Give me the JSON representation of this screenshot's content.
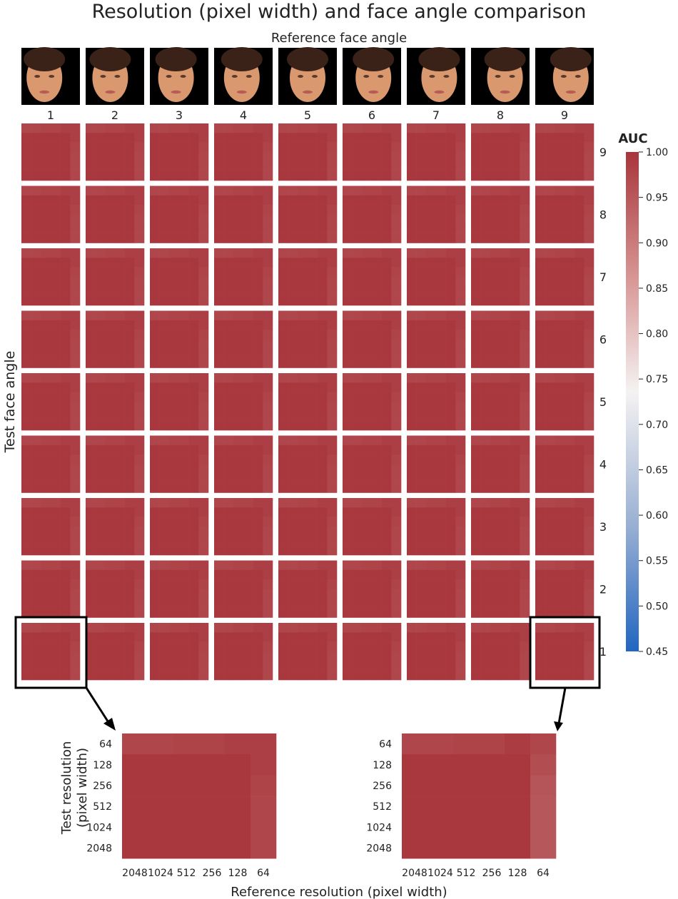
{
  "chart_data": {
    "type": "heatmap",
    "title": "Resolution (pixel width) and face angle comparison",
    "top_label": "Reference face angle",
    "ylabel": "Test face angle",
    "reference_angles": [
      "1",
      "2",
      "3",
      "4",
      "5",
      "6",
      "7",
      "8",
      "9"
    ],
    "test_angles": [
      "9",
      "8",
      "7",
      "6",
      "5",
      "4",
      "3",
      "2",
      "1"
    ],
    "colorbar": {
      "label": "AUC",
      "range": [
        0.45,
        1.0
      ],
      "ticks": [
        "1.00",
        "0.95",
        "0.90",
        "0.85",
        "0.80",
        "0.75",
        "0.70",
        "0.65",
        "0.60",
        "0.55",
        "0.50",
        "0.45"
      ]
    },
    "zoom": {
      "xlabel": "Reference resolution (pixel width)",
      "ylabel_line1": "Test resolution",
      "ylabel_line2": "(pixel width)",
      "x_ticks": [
        "2048",
        "1024",
        "512",
        "256",
        "128",
        "64"
      ],
      "y_ticks": [
        "64",
        "128",
        "256",
        "512",
        "1024",
        "2048"
      ],
      "left_source": "test 1 / reference 1",
      "right_source": "test 1 / reference 9",
      "left_values": [
        [
          0.975,
          0.975,
          0.98,
          0.98,
          0.985,
          0.985
        ],
        [
          0.995,
          0.995,
          0.995,
          0.995,
          0.995,
          0.985
        ],
        [
          0.995,
          0.995,
          0.995,
          0.995,
          0.995,
          0.98
        ],
        [
          0.995,
          0.995,
          0.995,
          0.995,
          0.995,
          0.975
        ],
        [
          0.995,
          0.995,
          0.995,
          0.995,
          0.995,
          0.975
        ],
        [
          0.995,
          0.995,
          0.995,
          0.995,
          0.995,
          0.975
        ]
      ],
      "right_values": [
        [
          0.975,
          0.975,
          0.98,
          0.98,
          0.99,
          0.975
        ],
        [
          0.995,
          0.995,
          0.995,
          0.995,
          0.995,
          0.965
        ],
        [
          0.995,
          0.995,
          0.995,
          0.995,
          0.995,
          0.955
        ],
        [
          0.995,
          0.995,
          0.995,
          0.995,
          0.995,
          0.95
        ],
        [
          0.995,
          0.995,
          0.995,
          0.995,
          0.995,
          0.95
        ],
        [
          0.995,
          0.995,
          0.995,
          0.995,
          0.995,
          0.95
        ]
      ]
    },
    "colors": {
      "high": "#a8353b",
      "low": "#2166c0",
      "mid": "#f5f2f2",
      "face_bg": "#000000",
      "skin": "#d9986e"
    }
  }
}
